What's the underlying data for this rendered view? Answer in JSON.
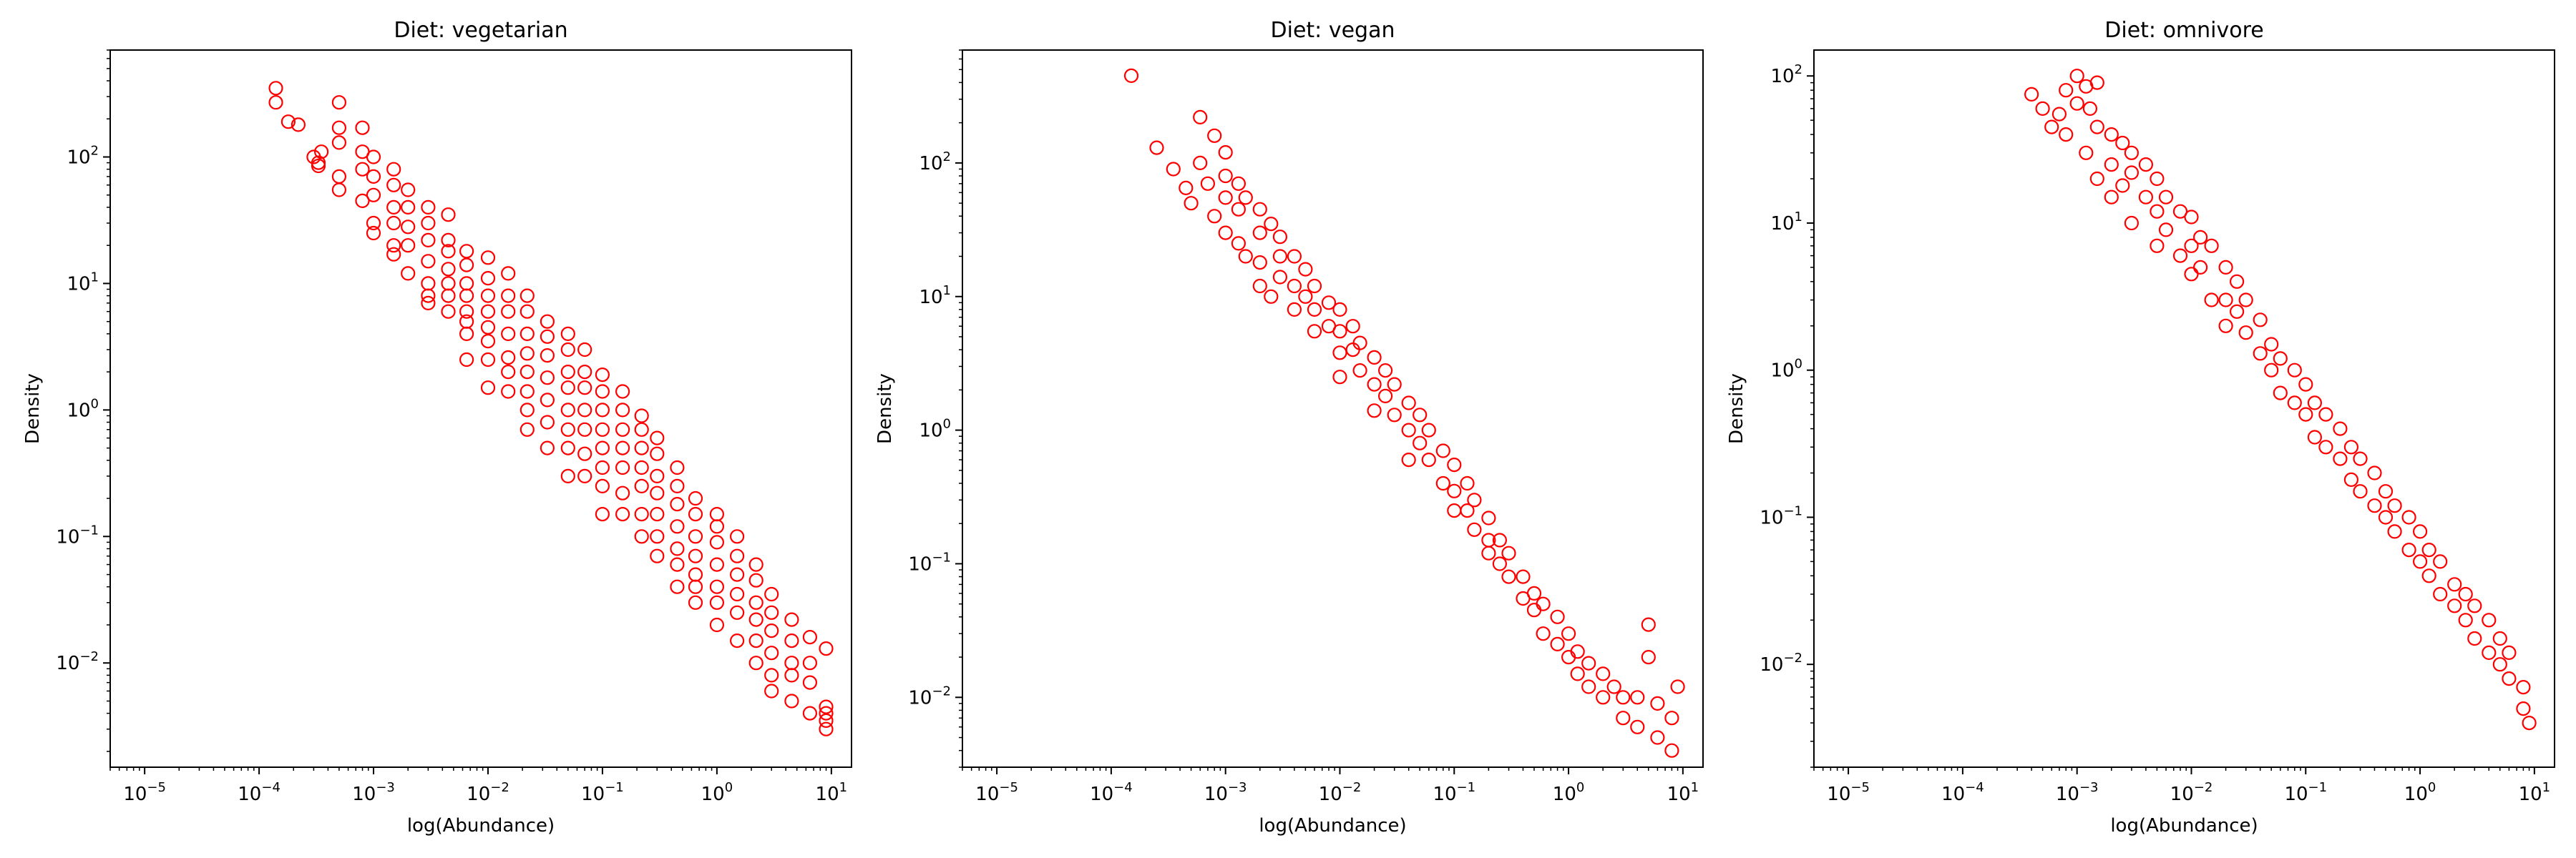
{
  "figure": {
    "background": "#ffffff"
  },
  "marker": {
    "shape": "open-circle",
    "color": "#ff0000"
  },
  "chart_data": [
    {
      "type": "scatter",
      "title": "Diet: vegetarian",
      "xlabel": "log(Abundance)",
      "ylabel": "Density",
      "xscale": "log",
      "yscale": "log",
      "xlim": [
        5e-06,
        15
      ],
      "ylim": [
        0.0015,
        700
      ],
      "xticks": [
        "10^-5",
        "10^-4",
        "10^-3",
        "10^-2",
        "10^-1",
        "10^0",
        "10^1"
      ],
      "yticks": [
        "10^-2",
        "10^-1",
        "10^0",
        "10^1",
        "10^2"
      ],
      "grid": false,
      "legend": "none",
      "x": [
        0.00014,
        0.00018,
        0.00014,
        0.00022,
        0.0003,
        0.00033,
        0.00033,
        0.00035,
        0.0005,
        0.0005,
        0.0005,
        0.0005,
        0.0005,
        0.0008,
        0.0008,
        0.0008,
        0.0008,
        0.001,
        0.001,
        0.001,
        0.001,
        0.001,
        0.0015,
        0.0015,
        0.0015,
        0.0015,
        0.0015,
        0.0015,
        0.002,
        0.002,
        0.002,
        0.002,
        0.002,
        0.003,
        0.003,
        0.003,
        0.003,
        0.003,
        0.003,
        0.003,
        0.0045,
        0.0045,
        0.0045,
        0.0045,
        0.0045,
        0.0045,
        0.0045,
        0.0065,
        0.0065,
        0.0065,
        0.0065,
        0.0065,
        0.0065,
        0.0065,
        0.0065,
        0.01,
        0.01,
        0.01,
        0.01,
        0.01,
        0.01,
        0.01,
        0.01,
        0.015,
        0.015,
        0.015,
        0.015,
        0.015,
        0.015,
        0.015,
        0.022,
        0.022,
        0.022,
        0.022,
        0.022,
        0.022,
        0.022,
        0.022,
        0.033,
        0.033,
        0.033,
        0.033,
        0.033,
        0.033,
        0.033,
        0.05,
        0.05,
        0.05,
        0.05,
        0.05,
        0.05,
        0.05,
        0.05,
        0.07,
        0.07,
        0.07,
        0.07,
        0.07,
        0.07,
        0.07,
        0.1,
        0.1,
        0.1,
        0.1,
        0.1,
        0.1,
        0.1,
        0.1,
        0.15,
        0.15,
        0.15,
        0.15,
        0.15,
        0.15,
        0.15,
        0.22,
        0.22,
        0.22,
        0.22,
        0.22,
        0.22,
        0.22,
        0.3,
        0.3,
        0.3,
        0.3,
        0.3,
        0.3,
        0.3,
        0.45,
        0.45,
        0.45,
        0.45,
        0.45,
        0.45,
        0.45,
        0.65,
        0.65,
        0.65,
        0.65,
        0.65,
        0.65,
        0.65,
        1,
        1,
        1,
        1,
        1,
        1,
        1,
        1.5,
        1.5,
        1.5,
        1.5,
        1.5,
        1.5,
        2.2,
        2.2,
        2.2,
        2.2,
        2.2,
        2.2,
        3,
        3,
        3,
        3,
        3,
        3,
        4.5,
        4.5,
        4.5,
        4.5,
        4.5,
        6.5,
        6.5,
        6.5,
        6.5,
        9,
        9,
        9,
        9,
        9
      ],
      "y": [
        350,
        190,
        270,
        180,
        100,
        85,
        90,
        110,
        270,
        170,
        130,
        70,
        55,
        170,
        110,
        80,
        45,
        100,
        70,
        50,
        30,
        25,
        80,
        60,
        40,
        30,
        20,
        17,
        55,
        40,
        28,
        20,
        12,
        40,
        30,
        22,
        15,
        10,
        8,
        7,
        35,
        22,
        18,
        13,
        10,
        8,
        6,
        18,
        14,
        10,
        8,
        6,
        5,
        4,
        2.5,
        16,
        11,
        8,
        6,
        4.5,
        3.5,
        2.5,
        1.5,
        12,
        8,
        6,
        4,
        2.6,
        2,
        1.4,
        8,
        6,
        4,
        2.8,
        2,
        1.4,
        1,
        0.7,
        5,
        3.8,
        2.7,
        1.8,
        1.2,
        0.8,
        0.5,
        4,
        3,
        2,
        1.5,
        1,
        0.7,
        0.5,
        0.3,
        3,
        2,
        1.5,
        1,
        0.7,
        0.45,
        0.3,
        1.9,
        1.4,
        1,
        0.7,
        0.5,
        0.35,
        0.25,
        0.15,
        1.4,
        1,
        0.7,
        0.5,
        0.35,
        0.22,
        0.15,
        0.9,
        0.7,
        0.5,
        0.35,
        0.25,
        0.15,
        0.1,
        0.6,
        0.45,
        0.3,
        0.22,
        0.15,
        0.1,
        0.07,
        0.35,
        0.25,
        0.18,
        0.12,
        0.08,
        0.06,
        0.04,
        0.2,
        0.15,
        0.1,
        0.07,
        0.05,
        0.04,
        0.03,
        0.15,
        0.12,
        0.09,
        0.06,
        0.04,
        0.03,
        0.02,
        0.1,
        0.07,
        0.05,
        0.035,
        0.025,
        0.015,
        0.06,
        0.045,
        0.03,
        0.022,
        0.015,
        0.01,
        0.035,
        0.025,
        0.018,
        0.012,
        0.008,
        0.006,
        0.022,
        0.015,
        0.01,
        0.008,
        0.005,
        0.016,
        0.01,
        0.007,
        0.004,
        0.013,
        0.004,
        0.0035,
        0.003,
        0.0045
      ]
    },
    {
      "type": "scatter",
      "title": "Diet: vegan",
      "xlabel": "log(Abundance)",
      "ylabel": "Density",
      "xscale": "log",
      "yscale": "log",
      "xlim": [
        5e-06,
        15
      ],
      "ylim": [
        0.003,
        700
      ],
      "xticks": [
        "10^-5",
        "10^-4",
        "10^-3",
        "10^-2",
        "10^-1",
        "10^0",
        "10^1"
      ],
      "yticks": [
        "10^-2",
        "10^-1",
        "10^0",
        "10^1",
        "10^2"
      ],
      "grid": false,
      "legend": "none",
      "x": [
        0.00015,
        0.00025,
        0.00035,
        0.00045,
        0.0005,
        0.0006,
        0.0006,
        0.0007,
        0.0008,
        0.0008,
        0.001,
        0.001,
        0.001,
        0.001,
        0.0013,
        0.0013,
        0.0013,
        0.0015,
        0.0015,
        0.002,
        0.002,
        0.002,
        0.002,
        0.0025,
        0.0025,
        0.003,
        0.003,
        0.003,
        0.004,
        0.004,
        0.004,
        0.005,
        0.005,
        0.006,
        0.006,
        0.006,
        0.008,
        0.008,
        0.01,
        0.01,
        0.01,
        0.01,
        0.013,
        0.013,
        0.015,
        0.015,
        0.02,
        0.02,
        0.02,
        0.025,
        0.025,
        0.03,
        0.03,
        0.04,
        0.04,
        0.04,
        0.05,
        0.05,
        0.06,
        0.06,
        0.08,
        0.08,
        0.1,
        0.1,
        0.1,
        0.13,
        0.13,
        0.15,
        0.15,
        0.2,
        0.2,
        0.2,
        0.25,
        0.25,
        0.3,
        0.3,
        0.4,
        0.4,
        0.5,
        0.5,
        0.6,
        0.6,
        0.8,
        0.8,
        1,
        1,
        1.2,
        1.2,
        1.5,
        1.5,
        2,
        2,
        2.5,
        3,
        3,
        4,
        4,
        5,
        5,
        6,
        6,
        8,
        8,
        9
      ],
      "y": [
        450,
        130,
        90,
        65,
        50,
        220,
        100,
        70,
        160,
        40,
        120,
        80,
        55,
        30,
        70,
        45,
        25,
        55,
        20,
        45,
        30,
        18,
        12,
        35,
        10,
        28,
        20,
        14,
        20,
        12,
        8,
        16,
        10,
        12,
        8,
        5.5,
        9,
        6,
        8,
        5.5,
        3.8,
        2.5,
        6,
        4,
        4.5,
        2.8,
        3.5,
        2.2,
        1.4,
        2.8,
        1.8,
        2.2,
        1.3,
        1.6,
        1,
        0.6,
        1.3,
        0.8,
        1,
        0.6,
        0.7,
        0.4,
        0.55,
        0.35,
        0.25,
        0.4,
        0.25,
        0.3,
        0.18,
        0.22,
        0.15,
        0.12,
        0.15,
        0.1,
        0.12,
        0.08,
        0.08,
        0.055,
        0.06,
        0.045,
        0.05,
        0.03,
        0.04,
        0.025,
        0.03,
        0.02,
        0.022,
        0.015,
        0.018,
        0.012,
        0.015,
        0.01,
        0.012,
        0.01,
        0.007,
        0.01,
        0.006,
        0.035,
        0.02,
        0.009,
        0.005,
        0.007,
        0.004,
        0.012
      ]
    },
    {
      "type": "scatter",
      "title": "Diet: omnivore",
      "xlabel": "log(Abundance)",
      "ylabel": "Density",
      "xscale": "log",
      "yscale": "log",
      "xlim": [
        5e-06,
        15
      ],
      "ylim": [
        0.002,
        150
      ],
      "xticks": [
        "10^-5",
        "10^-4",
        "10^-3",
        "10^-2",
        "10^-1",
        "10^0",
        "10^1"
      ],
      "yticks": [
        "10^-2",
        "10^-1",
        "10^0",
        "10^1",
        "10^2"
      ],
      "grid": false,
      "legend": "none",
      "x": [
        0.0004,
        0.0005,
        0.0006,
        0.0007,
        0.0008,
        0.0008,
        0.001,
        0.001,
        0.0012,
        0.0012,
        0.0013,
        0.0015,
        0.0015,
        0.0015,
        0.002,
        0.002,
        0.002,
        0.0025,
        0.0025,
        0.003,
        0.003,
        0.003,
        0.004,
        0.004,
        0.005,
        0.005,
        0.005,
        0.006,
        0.006,
        0.008,
        0.008,
        0.01,
        0.01,
        0.01,
        0.012,
        0.012,
        0.015,
        0.015,
        0.02,
        0.02,
        0.02,
        0.025,
        0.025,
        0.03,
        0.03,
        0.04,
        0.04,
        0.05,
        0.05,
        0.06,
        0.06,
        0.08,
        0.08,
        0.1,
        0.1,
        0.12,
        0.12,
        0.15,
        0.15,
        0.2,
        0.2,
        0.25,
        0.25,
        0.3,
        0.3,
        0.4,
        0.4,
        0.5,
        0.5,
        0.6,
        0.6,
        0.8,
        0.8,
        1,
        1,
        1.2,
        1.2,
        1.5,
        1.5,
        2,
        2,
        2.5,
        2.5,
        3,
        3,
        4,
        4,
        5,
        5,
        6,
        6,
        8,
        8,
        9
      ],
      "y": [
        75,
        60,
        45,
        55,
        80,
        40,
        100,
        65,
        85,
        30,
        60,
        90,
        45,
        20,
        40,
        25,
        15,
        35,
        18,
        30,
        22,
        10,
        25,
        15,
        20,
        12,
        7,
        15,
        9,
        12,
        6,
        11,
        7,
        4.5,
        8,
        5,
        7,
        3,
        5,
        3,
        2,
        4,
        2.5,
        3,
        1.8,
        2.2,
        1.3,
        1.5,
        1,
        1.2,
        0.7,
        1,
        0.6,
        0.8,
        0.5,
        0.6,
        0.35,
        0.5,
        0.3,
        0.4,
        0.25,
        0.3,
        0.18,
        0.25,
        0.15,
        0.2,
        0.12,
        0.15,
        0.1,
        0.12,
        0.08,
        0.1,
        0.06,
        0.08,
        0.05,
        0.06,
        0.04,
        0.05,
        0.03,
        0.035,
        0.025,
        0.03,
        0.02,
        0.025,
        0.015,
        0.02,
        0.012,
        0.015,
        0.01,
        0.012,
        0.008,
        0.007,
        0.005,
        0.004
      ]
    }
  ]
}
